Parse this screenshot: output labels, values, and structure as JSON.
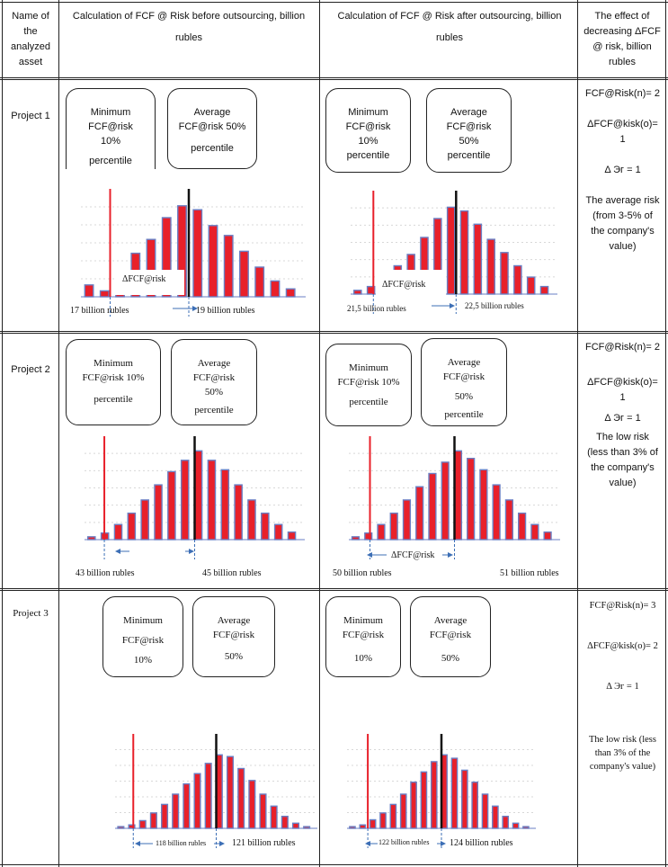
{
  "header": {
    "col1": "Name of the analyzed asset",
    "col2": "Calculation of FCF @ Risk before outsourcing, billion rubles",
    "col3": "Calculation of FCF @ Risk after outsourcing, billion rubles",
    "col4": "The effect of decreasing ΔFCF @ risk, billion rubles"
  },
  "rows": [
    {
      "project": "Project 1",
      "before": {
        "min_box": [
          "Minimum",
          "FCF@risk",
          "10%",
          "percentile"
        ],
        "avg_box": [
          "Average",
          "FCF@risk 50%",
          "percentile"
        ],
        "delta_label": "ΔFCF@risk",
        "left_value": "17 billion rubles",
        "right_value": "19 billion rubles"
      },
      "after": {
        "min_box": [
          "Minimum",
          "FCF@risk",
          "10%",
          "percentile"
        ],
        "avg_box": [
          "Average",
          "FCF@risk",
          "50%",
          "percentile"
        ],
        "delta_label": "ΔFCF@risk",
        "left_value": "21,5  billion  rubles",
        "right_value": "22,5  billion  rubles"
      },
      "effect": [
        "FCF@Risk(n)= 2",
        "",
        "ΔFCF@kisk(o)=",
        "1",
        "",
        "Δ Эг = 1",
        "",
        "The average risk",
        "(from 3-5% of",
        "the company's",
        "value)"
      ]
    },
    {
      "project": "Project 2",
      "before": {
        "min_box": [
          "Minimum",
          "FCF@risk 10%",
          "percentile"
        ],
        "avg_box": [
          "Average",
          "FCF@risk",
          "50%",
          "percentile"
        ],
        "delta_label": "",
        "left_value": "43 billion rubles",
        "right_value": "45 billion  rubles"
      },
      "after": {
        "min_box": [
          "Minimum",
          "FCF@risk 10%",
          "percentile"
        ],
        "avg_box": [
          "Average",
          "FCF@risk",
          "50%",
          "percentile"
        ],
        "delta_label": "ΔFCF@risk",
        "left_value": "50 billion rubles",
        "right_value": "51 billion rubles"
      },
      "effect": [
        "FCF@Risk(n)= 2",
        "",
        "ΔFCF@kisk(o)=",
        "1",
        "Δ Эг = 1",
        "The low risk",
        "(less than 3% of",
        "the company's",
        "value)"
      ]
    },
    {
      "project": "Project 3",
      "before": {
        "min_box": [
          "Minimum",
          "FCF@risk",
          "10%"
        ],
        "avg_box": [
          "Average",
          "FCF@risk",
          "50%"
        ],
        "delta_label": "118 billion rubles",
        "left_value": "",
        "right_value": "121  billion  rubles"
      },
      "after": {
        "min_box": [
          "Minimum",
          "FCF@risk",
          "10%"
        ],
        "avg_box": [
          "Average",
          "FCF@risk",
          "50%"
        ],
        "delta_label": "122 billion rubles",
        "left_value": "",
        "right_value": "124  billion  rubles"
      },
      "effect": [
        "FCF@Risk(n)= 3",
        "",
        "ΔFCF@kisk(o)= 2",
        "",
        "Δ Эг = 1",
        "",
        "",
        "The low risk (less",
        "than 3% of the",
        "company's value)"
      ]
    }
  ],
  "colors": {
    "bar_fill": "#e8202a",
    "bar_edge": "#6a7fc4",
    "min_line": "#e8202a",
    "avg_line": "#111111",
    "arrow": "#3d6fb6"
  }
}
